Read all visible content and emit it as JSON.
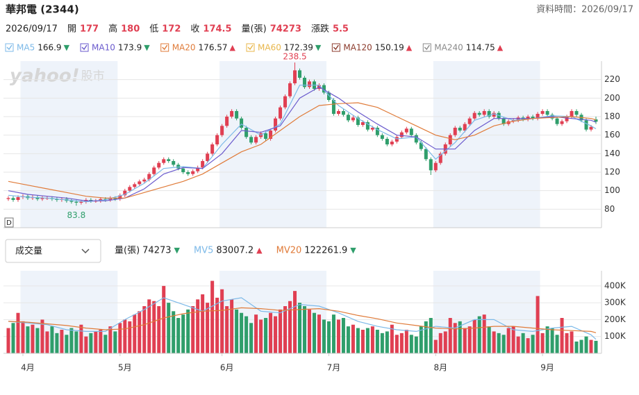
{
  "header": {
    "title": "華邦電 (2344)",
    "time_label": "資料時間：2026/09/17",
    "date": "2026/09/17",
    "value_color": "#e03f52",
    "quote": [
      {
        "label": "開",
        "value": 177
      },
      {
        "label": "高",
        "value": 180
      },
      {
        "label": "低",
        "value": 172
      },
      {
        "label": "收",
        "value": 174.5
      },
      {
        "label": "量(張)",
        "value": 74273
      },
      {
        "label": "漲跌",
        "value": 5.5
      }
    ]
  },
  "chart_data": [
    {
      "type": "candlestick",
      "watermark": "yahoo!",
      "watermark_sub": "股市",
      "badge": "D",
      "up_color": "#e03f52",
      "down_color": "#2f9e6b",
      "band_color": "#eef3fa",
      "grid": true,
      "xlim": [
        -1,
        122
      ],
      "ylim": [
        60,
        240
      ],
      "yticks": [
        80,
        100,
        120,
        140,
        160,
        180,
        200,
        220
      ],
      "high_label": 238.5,
      "low_label": 83.8,
      "opens": [
        91,
        92,
        90,
        93,
        94,
        92,
        93,
        91,
        92,
        92,
        91,
        90,
        91,
        89,
        88,
        87,
        88,
        90,
        89,
        89,
        91,
        90,
        92,
        91,
        95,
        100,
        104,
        107,
        110,
        112,
        118,
        125,
        130,
        134,
        132,
        128,
        124,
        120,
        118,
        121,
        125,
        132,
        140,
        150,
        160,
        170,
        180,
        186,
        178,
        168,
        158,
        152,
        158,
        162,
        156,
        165,
        178,
        190,
        202,
        216,
        230,
        222,
        212,
        218,
        210,
        214,
        206,
        198,
        183,
        186,
        182,
        176,
        179,
        171,
        174,
        166,
        168,
        160,
        156,
        150,
        153,
        158,
        163,
        167,
        160,
        152,
        145,
        134,
        122,
        130,
        140,
        150,
        160,
        168,
        165,
        172,
        178,
        184,
        182,
        186,
        180,
        184,
        178,
        172,
        175,
        176,
        179,
        177,
        180,
        178,
        183,
        186,
        182,
        178,
        172,
        175,
        180,
        186,
        182,
        176,
        166,
        177
      ],
      "highs": [
        94,
        94,
        95,
        96,
        96,
        95,
        95,
        94,
        94,
        94,
        93,
        93,
        93,
        91,
        90,
        90,
        92,
        92,
        91,
        93,
        93,
        94,
        94,
        97,
        102,
        106,
        109,
        112,
        114,
        120,
        127,
        132,
        136,
        136,
        134,
        130,
        126,
        122,
        123,
        127,
        134,
        142,
        152,
        162,
        172,
        182,
        188,
        188,
        180,
        170,
        160,
        160,
        164,
        164,
        167,
        180,
        192,
        204,
        218,
        238.5,
        232,
        224,
        220,
        220,
        216,
        216,
        208,
        200,
        188,
        188,
        184,
        181,
        181,
        176,
        176,
        170,
        170,
        162,
        158,
        155,
        160,
        165,
        169,
        169,
        162,
        154,
        147,
        136,
        132,
        142,
        152,
        162,
        170,
        170,
        174,
        180,
        186,
        186,
        188,
        188,
        186,
        186,
        180,
        177,
        178,
        181,
        181,
        182,
        182,
        185,
        188,
        188,
        184,
        180,
        177,
        182,
        188,
        188,
        184,
        178,
        171,
        180
      ],
      "lows": [
        89,
        88,
        88,
        91,
        90,
        90,
        89,
        89,
        90,
        89,
        88,
        88,
        87,
        86,
        83.8,
        85,
        86,
        87,
        87,
        87,
        88,
        88,
        89,
        89,
        93,
        98,
        102,
        105,
        108,
        110,
        116,
        123,
        128,
        130,
        126,
        122,
        118,
        116,
        116,
        119,
        123,
        130,
        138,
        148,
        158,
        168,
        178,
        176,
        166,
        156,
        150,
        150,
        156,
        154,
        154,
        163,
        176,
        188,
        200,
        214,
        220,
        210,
        210,
        208,
        208,
        204,
        196,
        181,
        181,
        180,
        174,
        174,
        169,
        169,
        164,
        164,
        158,
        154,
        148,
        148,
        151,
        156,
        161,
        158,
        150,
        143,
        132,
        117,
        120,
        128,
        138,
        148,
        158,
        163,
        163,
        170,
        176,
        180,
        180,
        178,
        178,
        176,
        170,
        170,
        173,
        174,
        175,
        175,
        176,
        176,
        181,
        180,
        176,
        170,
        170,
        173,
        178,
        180,
        174,
        164,
        164,
        172
      ],
      "closes": [
        92,
        90,
        93,
        94,
        92,
        93,
        91,
        92,
        92,
        91,
        90,
        91,
        89,
        88,
        87,
        88,
        90,
        89,
        89,
        91,
        90,
        92,
        91,
        95,
        100,
        104,
        107,
        110,
        112,
        118,
        125,
        130,
        134,
        132,
        128,
        124,
        120,
        118,
        121,
        125,
        132,
        140,
        150,
        160,
        170,
        180,
        186,
        178,
        168,
        158,
        152,
        158,
        162,
        156,
        165,
        178,
        190,
        202,
        216,
        230,
        222,
        212,
        218,
        210,
        214,
        206,
        198,
        183,
        186,
        182,
        176,
        179,
        171,
        174,
        166,
        168,
        160,
        156,
        150,
        153,
        158,
        163,
        167,
        160,
        152,
        145,
        134,
        122,
        130,
        140,
        150,
        160,
        168,
        165,
        172,
        178,
        184,
        182,
        186,
        180,
        184,
        178,
        172,
        175,
        176,
        179,
        177,
        180,
        178,
        183,
        186,
        182,
        178,
        172,
        175,
        180,
        186,
        182,
        176,
        166,
        169,
        174.5
      ],
      "series": [
        {
          "name": "MA5",
          "color": "#7cb9e8",
          "value": 166.9,
          "trend": "▼",
          "trend_color": "#2f9e6b",
          "x": [
            0,
            4,
            8,
            12,
            16,
            20,
            24,
            28,
            32,
            36,
            40,
            44,
            48,
            52,
            56,
            60,
            64,
            68,
            72,
            76,
            80,
            84,
            88,
            92,
            96,
            100,
            104,
            108,
            112,
            116,
            120,
            121
          ],
          "values": [
            95,
            93,
            92,
            90,
            88,
            90,
            96,
            108,
            124,
            126,
            124,
            150,
            172,
            160,
            172,
            214,
            214,
            192,
            178,
            166,
            156,
            158,
            134,
            152,
            176,
            183,
            176,
            178,
            181,
            180,
            170,
            166.9
          ]
        },
        {
          "name": "MA10",
          "color": "#6a5acd",
          "value": 173.9,
          "trend": "▼",
          "trend_color": "#2f9e6b",
          "x": [
            0,
            4,
            8,
            12,
            16,
            20,
            24,
            28,
            32,
            36,
            40,
            44,
            48,
            52,
            56,
            60,
            64,
            68,
            72,
            76,
            80,
            84,
            88,
            92,
            96,
            100,
            104,
            108,
            112,
            116,
            120,
            121
          ],
          "values": [
            100,
            96,
            94,
            92,
            89,
            89,
            92,
            102,
            118,
            125,
            124,
            140,
            165,
            163,
            170,
            200,
            212,
            200,
            185,
            172,
            160,
            158,
            145,
            145,
            165,
            178,
            178,
            178,
            180,
            178,
            176,
            173.9
          ]
        },
        {
          "name": "MA20",
          "color": "#e07b39",
          "value": 176.57,
          "trend": "▲",
          "trend_color": "#e03f52",
          "x": [
            0,
            4,
            8,
            12,
            16,
            20,
            24,
            28,
            32,
            36,
            40,
            44,
            48,
            52,
            56,
            60,
            64,
            68,
            72,
            76,
            80,
            84,
            88,
            92,
            96,
            100,
            104,
            108,
            112,
            116,
            120,
            121
          ],
          "values": [
            110,
            106,
            102,
            98,
            94,
            92,
            92,
            98,
            104,
            110,
            118,
            130,
            142,
            150,
            165,
            180,
            192,
            194,
            195,
            190,
            180,
            170,
            160,
            155,
            160,
            170,
            175,
            178,
            179,
            180,
            178,
            176.57
          ]
        },
        {
          "name": "MA60",
          "color": "#e8b64a",
          "value": 172.39,
          "trend": "▼",
          "trend_color": "#2f9e6b"
        },
        {
          "name": "MA120",
          "color": "#8b3a2b",
          "value": 150.19,
          "trend": "▲",
          "trend_color": "#e03f52"
        },
        {
          "name": "MA240",
          "color": "#8a8a8a",
          "value": 114.75,
          "trend": "▲",
          "trend_color": "#e03f52"
        }
      ]
    },
    {
      "type": "volume",
      "selector": "成交量",
      "xlim": [
        -1,
        122
      ],
      "ylim": [
        0,
        490000
      ],
      "grid": true,
      "yticks": [
        {
          "value": 100000,
          "label": "100K"
        },
        {
          "value": 200000,
          "label": "200K"
        },
        {
          "value": 300000,
          "label": "300K"
        },
        {
          "value": 400000,
          "label": "400K"
        }
      ],
      "xticks": [
        {
          "value": 3,
          "label": "4月"
        },
        {
          "value": 23,
          "label": "5月"
        },
        {
          "value": 44,
          "label": "6月"
        },
        {
          "value": 66,
          "label": "7月"
        },
        {
          "value": 88,
          "label": "8月"
        },
        {
          "value": 110,
          "label": "9月"
        }
      ],
      "legend": {
        "name": "量(張)",
        "value": 74273,
        "trend": "▼",
        "trend_color": "#2f9e6b"
      },
      "values": [
        150000,
        180000,
        240000,
        190000,
        160000,
        170000,
        150000,
        200000,
        130000,
        160000,
        120000,
        140000,
        110000,
        150000,
        130000,
        170000,
        100000,
        120000,
        130000,
        140000,
        110000,
        160000,
        130000,
        180000,
        200000,
        190000,
        230000,
        250000,
        280000,
        320000,
        310000,
        280000,
        400000,
        300000,
        250000,
        210000,
        230000,
        260000,
        280000,
        320000,
        350000,
        300000,
        430000,
        330000,
        380000,
        280000,
        320000,
        260000,
        240000,
        220000,
        180000,
        230000,
        200000,
        210000,
        240000,
        220000,
        260000,
        280000,
        310000,
        370000,
        300000,
        280000,
        260000,
        240000,
        230000,
        200000,
        190000,
        230000,
        200000,
        210000,
        160000,
        170000,
        150000,
        140000,
        150000,
        160000,
        140000,
        120000,
        130000,
        170000,
        110000,
        120000,
        140000,
        110000,
        100000,
        160000,
        190000,
        210000,
        80000,
        120000,
        130000,
        210000,
        180000,
        190000,
        150000,
        160000,
        200000,
        220000,
        230000,
        160000,
        130000,
        120000,
        110000,
        150000,
        160000,
        100000,
        120000,
        90000,
        110000,
        340000,
        120000,
        160000,
        150000,
        110000,
        210000,
        120000,
        130000,
        70000,
        80000,
        100000,
        80000,
        74273
      ],
      "series": [
        {
          "name": "MV5",
          "color": "#7cb9e8",
          "value": 83007.2,
          "trend": "▲",
          "trend_color": "#e03f52",
          "x": [
            0,
            4,
            8,
            12,
            16,
            20,
            24,
            28,
            32,
            36,
            40,
            44,
            48,
            52,
            56,
            60,
            64,
            68,
            72,
            76,
            80,
            84,
            88,
            92,
            96,
            100,
            104,
            108,
            112,
            116,
            120,
            121
          ],
          "values": [
            190000,
            180000,
            170000,
            140000,
            130000,
            130000,
            200000,
            260000,
            330000,
            290000,
            250000,
            310000,
            330000,
            250000,
            240000,
            290000,
            280000,
            240000,
            190000,
            160000,
            140000,
            130000,
            160000,
            150000,
            200000,
            200000,
            140000,
            130000,
            150000,
            160000,
            110000,
            83007.2
          ]
        },
        {
          "name": "MV20",
          "color": "#e07b39",
          "value": 122261.9,
          "trend": "▼",
          "trend_color": "#2f9e6b",
          "x": [
            0,
            4,
            8,
            12,
            16,
            20,
            24,
            28,
            32,
            36,
            40,
            44,
            48,
            52,
            56,
            60,
            64,
            68,
            72,
            76,
            80,
            84,
            88,
            92,
            96,
            100,
            104,
            108,
            112,
            116,
            120,
            121
          ],
          "values": [
            190000,
            185000,
            175000,
            165000,
            150000,
            140000,
            145000,
            170000,
            210000,
            235000,
            250000,
            255000,
            270000,
            265000,
            255000,
            260000,
            265000,
            250000,
            225000,
            205000,
            180000,
            165000,
            150000,
            145000,
            150000,
            160000,
            160000,
            150000,
            140000,
            135000,
            130000,
            122261.9
          ]
        }
      ]
    }
  ]
}
